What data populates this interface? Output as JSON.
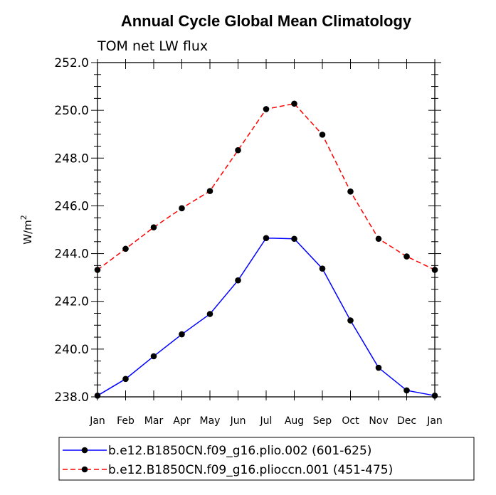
{
  "chart_data": {
    "type": "line",
    "title": "Annual Cycle Global Mean Climatology",
    "subtitle": "TOM net LW flux",
    "ylabel_base": "W/m",
    "ylabel_sup": "2",
    "ylim": [
      238.0,
      252.0
    ],
    "yticks": [
      "238.0",
      "240.0",
      "242.0",
      "244.0",
      "246.0",
      "248.0",
      "250.0",
      "252.0"
    ],
    "categories": [
      "Jan",
      "Feb",
      "Mar",
      "Apr",
      "May",
      "Jun",
      "Jul",
      "Aug",
      "Sep",
      "Oct",
      "Nov",
      "Dec",
      "Jan"
    ],
    "grid": false,
    "legend_position": "bottom",
    "series": [
      {
        "name": "b.e12.B1850CN.f09_g16.plio.002 (601-625)",
        "color": "#0000ff",
        "dash": "solid",
        "values": [
          238.05,
          238.75,
          239.7,
          240.62,
          241.47,
          242.88,
          244.65,
          244.62,
          243.37,
          241.2,
          239.22,
          238.27,
          238.05
        ]
      },
      {
        "name": "b.e12.B1850CN.f09_g16.plioccn.001 (451-475)",
        "color": "#ff0000",
        "dash": "dashed",
        "values": [
          243.32,
          244.2,
          245.1,
          245.9,
          246.62,
          248.33,
          250.05,
          250.28,
          248.98,
          246.6,
          244.62,
          243.88,
          243.32
        ]
      }
    ]
  }
}
